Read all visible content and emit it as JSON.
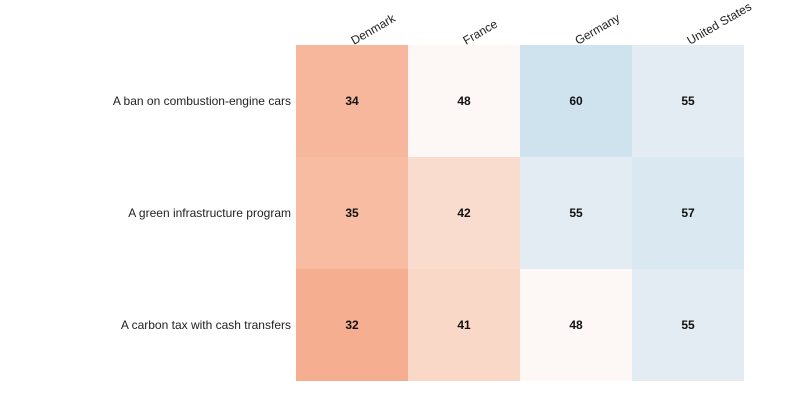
{
  "chart_data": {
    "type": "heatmap",
    "title": "",
    "xlabel": "",
    "ylabel": "",
    "columns": [
      "Denmark",
      "France",
      "Germany",
      "United States"
    ],
    "rows": [
      "A ban on combustion-engine cars",
      "A green infrastructure program",
      "A carbon tax with cash transfers"
    ],
    "values": [
      [
        34,
        48,
        60,
        55
      ],
      [
        35,
        42,
        55,
        57
      ],
      [
        32,
        41,
        48,
        55
      ]
    ],
    "color_scale": {
      "low_color": "#f4a582",
      "mid_color": "#fdf8f5",
      "high_color": "#c7dfee",
      "low_value": 30,
      "mid_value": 48,
      "high_value": 62
    },
    "legend": "none",
    "grid": false
  }
}
